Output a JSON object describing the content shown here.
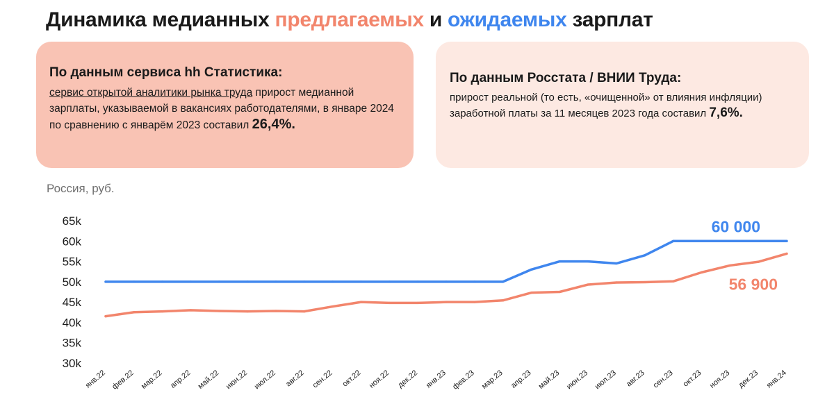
{
  "title": {
    "part1": "Динамика медианных ",
    "offered": "предлагаемых",
    "part2": " и ",
    "expected": "ожидаемых",
    "part3": " зарплат"
  },
  "card_left": {
    "heading": "По данным сервиса hh Статистика:",
    "link_text": "сервис открытой аналитики рынка труда",
    "body": " прирост медианной зарплаты, указываемой в вакансиях работодателями, в январе 2024 по сравнению с январём 2023 составил ",
    "value": "26,4%."
  },
  "card_right": {
    "heading": "По данным Росстата / ВНИИ Труда:",
    "body": "прирост реальной (то есть, «очищенной» от влияния инфляции) заработной платы за 11 месяцев 2023 года составил ",
    "value": "7,6%."
  },
  "region_label": "Россия, руб.",
  "colors": {
    "offered": "#f2856c",
    "expected": "#3f86ee",
    "card_left_bg": "#f9c3b4",
    "card_right_bg": "#fde9e2"
  },
  "chart_data": {
    "type": "line",
    "title": "",
    "xlabel": "",
    "ylabel": "",
    "categories": [
      "янв.22",
      "фев.22",
      "мар.22",
      "апр.22",
      "май.22",
      "июн.22",
      "июл.22",
      "авг.22",
      "сен.22",
      "окт.22",
      "ноя.22",
      "дек.22",
      "янв.23",
      "фев.23",
      "мар.23",
      "апр.23",
      "май.23",
      "июн.23",
      "июл.23",
      "авг.23",
      "сен.23",
      "окт.23",
      "ноя.23",
      "дек.23",
      "янв.24"
    ],
    "ylim": [
      30000,
      65000
    ],
    "yticks": [
      30000,
      35000,
      40000,
      45000,
      50000,
      55000,
      60000,
      65000
    ],
    "ytick_labels": [
      "30k",
      "35k",
      "40k",
      "45k",
      "50k",
      "55k",
      "60k",
      "65k"
    ],
    "grid": false,
    "series": [
      {
        "key": "expected",
        "color": "#3f86ee",
        "end_label": "60 000",
        "values": [
          50000,
          50000,
          50000,
          50000,
          50000,
          50000,
          50000,
          50000,
          50000,
          50000,
          50000,
          50000,
          50000,
          50000,
          50000,
          53000,
          55000,
          55000,
          54500,
          56500,
          60000,
          60000,
          60000,
          60000,
          60000
        ]
      },
      {
        "key": "offered",
        "color": "#f2856c",
        "end_label": "56 900",
        "values": [
          41500,
          42500,
          42700,
          43000,
          42800,
          42700,
          42800,
          42700,
          43900,
          45000,
          44800,
          44800,
          45000,
          45000,
          45400,
          47300,
          47500,
          49300,
          49800,
          49900,
          50100,
          52300,
          54000,
          54900,
          56900
        ]
      }
    ]
  }
}
